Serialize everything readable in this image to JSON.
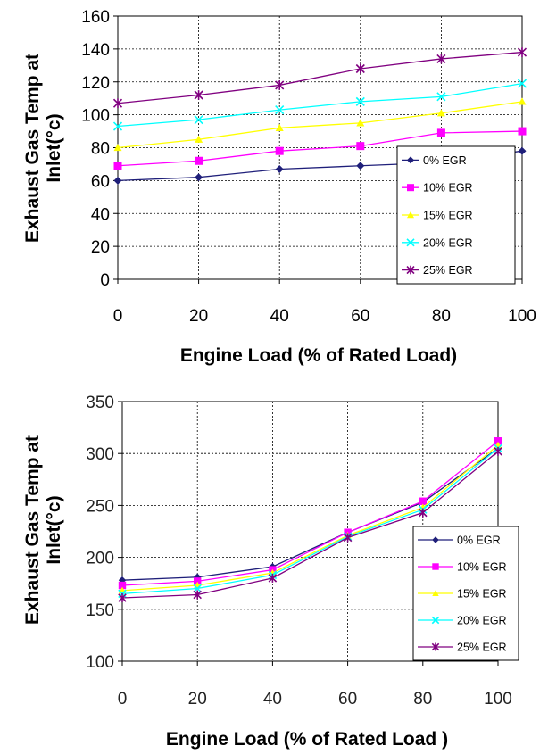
{
  "chart_data": [
    {
      "type": "line",
      "title": "",
      "xlabel": "Engine Load (% of Rated Load)",
      "ylabel_lines": [
        "Exhaust Gas Temp at",
        "Inlet(°c)"
      ],
      "x": [
        0,
        20,
        40,
        60,
        80,
        100
      ],
      "xlim": [
        0,
        100
      ],
      "ylim": [
        0,
        160
      ],
      "yticks": [
        0,
        20,
        40,
        60,
        80,
        100,
        120,
        140,
        160
      ],
      "grid": true,
      "legend": "bottom-right",
      "series": [
        {
          "name": "0% EGR",
          "color": "#1f1f7a",
          "marker": "diamond",
          "values": [
            60,
            62,
            67,
            69,
            71,
            78
          ]
        },
        {
          "name": "10% EGR",
          "color": "#ff00ff",
          "marker": "square",
          "values": [
            69,
            72,
            78,
            81,
            89,
            90
          ]
        },
        {
          "name": "15% EGR",
          "color": "#ffff00",
          "marker": "triangle",
          "values": [
            80,
            85,
            92,
            95,
            101,
            108
          ]
        },
        {
          "name": "20% EGR",
          "color": "#00ffff",
          "marker": "x",
          "values": [
            93,
            97,
            103,
            108,
            111,
            119
          ]
        },
        {
          "name": "25% EGR",
          "color": "#800080",
          "marker": "star",
          "values": [
            107,
            112,
            118,
            128,
            134,
            138
          ]
        }
      ]
    },
    {
      "type": "line",
      "title": "",
      "xlabel": "Engine Load (% of  Rated Load  )",
      "ylabel_lines": [
        "Exhaust Gas Temp at",
        "Inlet(°c)"
      ],
      "x": [
        0,
        20,
        40,
        60,
        80,
        100
      ],
      "xlim": [
        0,
        100
      ],
      "ylim": [
        100,
        350
      ],
      "yticks": [
        100,
        150,
        200,
        250,
        300,
        350
      ],
      "grid": true,
      "legend": "right",
      "series": [
        {
          "name": "0% EGR",
          "color": "#1f1f7a",
          "marker": "diamond",
          "values": [
            178,
            181,
            191,
            224,
            253,
            305
          ]
        },
        {
          "name": "10% EGR",
          "color": "#ff00ff",
          "marker": "square",
          "values": [
            173,
            177,
            188,
            224,
            254,
            312
          ]
        },
        {
          "name": "15% EGR",
          "color": "#ffff00",
          "marker": "triangle",
          "values": [
            168,
            173,
            185,
            221,
            248,
            308
          ]
        },
        {
          "name": "20% EGR",
          "color": "#00ffff",
          "marker": "x",
          "values": [
            165,
            170,
            183,
            220,
            246,
            305
          ]
        },
        {
          "name": "25% EGR",
          "color": "#800080",
          "marker": "star",
          "values": [
            161,
            164,
            180,
            219,
            243,
            302
          ]
        }
      ]
    }
  ]
}
